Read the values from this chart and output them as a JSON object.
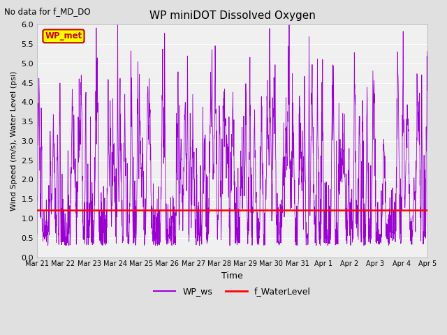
{
  "title": "WP miniDOT Dissolved Oxygen",
  "subtitle": "No data for f_MD_DO",
  "xlabel": "Time",
  "ylabel": "Wind Speed (m/s), Water Level (psi)",
  "ylim": [
    0.0,
    6.0
  ],
  "yticks": [
    0.0,
    0.5,
    1.0,
    1.5,
    2.0,
    2.5,
    3.0,
    3.5,
    4.0,
    4.5,
    5.0,
    5.5,
    6.0
  ],
  "num_points": 2000,
  "wp_ws_color": "#9B00D3",
  "f_waterlevel_color": "#FF0000",
  "f_waterlevel_value": 1.22,
  "fig_bg_color": "#E0E0E0",
  "plot_bg_color": "#F0F0F0",
  "legend_wp_met_bg": "#FFFF00",
  "legend_wp_met_edge": "#CC0000",
  "legend_wp_met_text": "WP_met",
  "legend_wp_met_color": "#CC0000",
  "xtick_labels": [
    "Mar 21",
    "Mar 22",
    "Mar 23",
    "Mar 24",
    "Mar 25",
    "Mar 26",
    "Mar 27",
    "Mar 28",
    "Mar 29",
    "Mar 30",
    "Mar 31",
    "Apr 1",
    "Apr 2",
    "Apr 3",
    "Apr 4",
    "Apr 5"
  ],
  "grid_color": "#FFFFFF",
  "seed": 7
}
